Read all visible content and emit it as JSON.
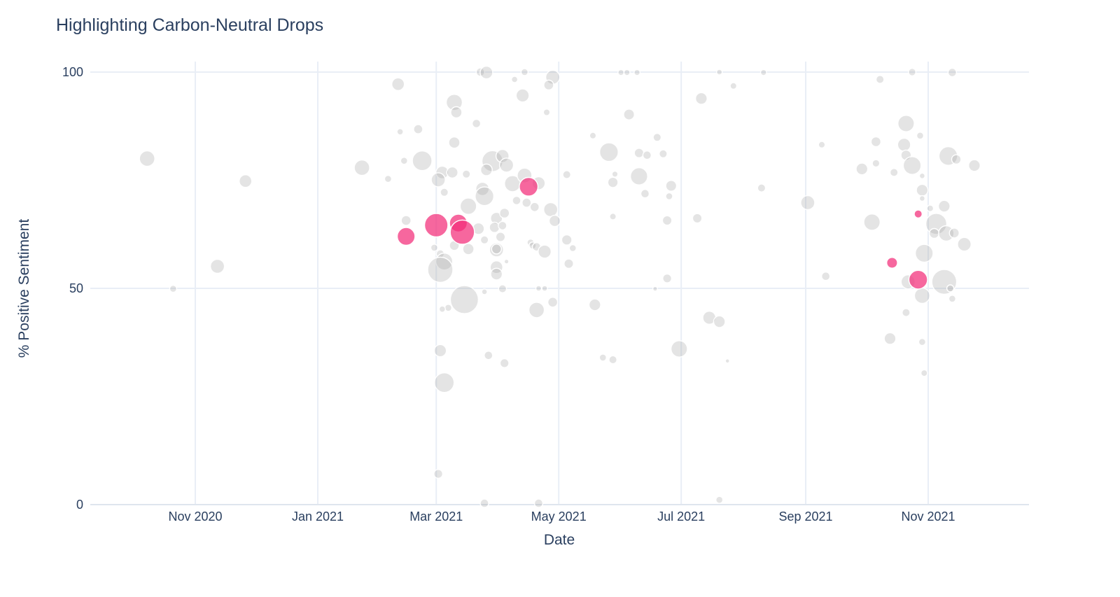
{
  "title": "Highlighting Carbon-Neutral Drops",
  "chart_data": {
    "type": "scatter",
    "title": "Highlighting Carbon-Neutral Drops",
    "xlabel": "Date",
    "ylabel": "% Positive Sentiment",
    "x_ticks": [
      "Nov 2020",
      "Jan 2021",
      "Mar 2021",
      "May 2021",
      "Jul 2021",
      "Sep 2021",
      "Nov 2021"
    ],
    "x_tick_dates": [
      "2020-11-01",
      "2021-01-01",
      "2021-03-01",
      "2021-05-01",
      "2021-07-01",
      "2021-09-01",
      "2021-11-01"
    ],
    "y_ticks": [
      0,
      50,
      100
    ],
    "ylim": [
      0,
      100
    ],
    "x_range": [
      "2020-09-10",
      "2021-12-21"
    ],
    "grid": true,
    "legend_position": "none",
    "points_format": [
      "date",
      "pct_positive_sentiment",
      "bubble_radius_px"
    ],
    "colors": {
      "text": "#2a3f5f",
      "grid": "#e9eef6",
      "axis_line": "#dfe5ee",
      "base_bubble": "rgba(165,165,165,0.30)",
      "highlight_bubble": "rgba(243,45,120,0.72)",
      "bubble_stroke": "#ffffff",
      "background": "#ffffff"
    },
    "series": [
      {
        "key": "base_drops",
        "role": "base",
        "points": [
          [
            "2020-10-08",
            80.0,
            11
          ],
          [
            "2020-11-26",
            74.8,
            9
          ],
          [
            "2020-11-12",
            55.1,
            10
          ],
          [
            "2020-10-21",
            49.9,
            5
          ],
          [
            "2021-02-10",
            97.2,
            9
          ],
          [
            "2021-02-11",
            86.2,
            4.5
          ],
          [
            "2021-02-20",
            86.8,
            6.5
          ],
          [
            "2021-01-23",
            77.9,
            11
          ],
          [
            "2021-02-13",
            79.5,
            5
          ],
          [
            "2021-02-22",
            79.5,
            14
          ],
          [
            "2021-02-05",
            75.3,
            5
          ],
          [
            "2021-02-14",
            65.7,
            7
          ],
          [
            "2021-03-10",
            93.0,
            11.5
          ],
          [
            "2021-03-11",
            90.7,
            8
          ],
          [
            "2021-03-23",
            100,
            6
          ],
          [
            "2021-03-26",
            99.9,
            9
          ],
          [
            "2021-04-09",
            98.3,
            4.5
          ],
          [
            "2021-04-14",
            100,
            5
          ],
          [
            "2021-04-13",
            94.6,
            9.3
          ],
          [
            "2021-04-28",
            98.8,
            10
          ],
          [
            "2021-04-26",
            97.0,
            7
          ],
          [
            "2021-04-25",
            90.7,
            4.7
          ],
          [
            "2021-03-21",
            88.1,
            6
          ],
          [
            "2021-03-10",
            83.7,
            8
          ],
          [
            "2021-03-04",
            76.8,
            9
          ],
          [
            "2021-03-09",
            76.8,
            8
          ],
          [
            "2021-03-02",
            75.1,
            10
          ],
          [
            "2021-03-05",
            72.2,
            5.7
          ],
          [
            "2021-03-16",
            76.4,
            5.7
          ],
          [
            "2021-03-29",
            79.4,
            15
          ],
          [
            "2021-04-03",
            80.6,
            9.3
          ],
          [
            "2021-04-05",
            78.5,
            10
          ],
          [
            "2021-03-26",
            77.4,
            8.3
          ],
          [
            "2021-03-24",
            73.0,
            9.5
          ],
          [
            "2021-03-25",
            71.3,
            13.3
          ],
          [
            "2021-03-17",
            69.0,
            11.7
          ],
          [
            "2021-04-08",
            74.2,
            11.5
          ],
          [
            "2021-04-14",
            76.1,
            10.5
          ],
          [
            "2021-04-21",
            74.3,
            9.3
          ],
          [
            "2021-04-10",
            70.3,
            6
          ],
          [
            "2021-04-15",
            69.8,
            6.5
          ],
          [
            "2021-04-19",
            68.8,
            6.5
          ],
          [
            "2021-04-27",
            68.2,
            10
          ],
          [
            "2021-05-05",
            76.3,
            5.7
          ],
          [
            "2021-04-29",
            65.6,
            8
          ],
          [
            "2021-03-22",
            63.8,
            8.3
          ],
          [
            "2021-03-25",
            61.2,
            5.7
          ],
          [
            "2021-03-10",
            59.9,
            7
          ],
          [
            "2021-03-17",
            59.1,
            8
          ],
          [
            "2021-02-28",
            59.4,
            5
          ],
          [
            "2021-03-03",
            58.0,
            5.7
          ],
          [
            "2021-03-05",
            56.2,
            12
          ],
          [
            "2021-03-03",
            54.3,
            18
          ],
          [
            "2021-03-31",
            66.2,
            8.5
          ],
          [
            "2021-04-04",
            67.4,
            7
          ],
          [
            "2021-03-30",
            64.1,
            7.3
          ],
          [
            "2021-04-03",
            64.5,
            6
          ],
          [
            "2021-04-02",
            61.9,
            6.7
          ],
          [
            "2021-03-31",
            58.9,
            10
          ],
          [
            "2021-03-31",
            59.1,
            7
          ],
          [
            "2021-03-31",
            54.9,
            9
          ],
          [
            "2021-03-31",
            53.3,
            8.3
          ],
          [
            "2021-04-05",
            56.2,
            3.3
          ],
          [
            "2021-03-15",
            47.4,
            20
          ],
          [
            "2021-03-07",
            45.5,
            5
          ],
          [
            "2021-03-04",
            45.2,
            4.5
          ],
          [
            "2021-03-25",
            49.2,
            4
          ],
          [
            "2021-04-03",
            49.9,
            5.7
          ],
          [
            "2021-04-21",
            50.0,
            4
          ],
          [
            "2021-04-24",
            50.0,
            4
          ],
          [
            "2021-04-20",
            45.0,
            11
          ],
          [
            "2021-04-28",
            46.8,
            7
          ],
          [
            "2021-05-05",
            61.2,
            7.3
          ],
          [
            "2021-05-06",
            55.7,
            6.7
          ],
          [
            "2021-05-08",
            59.3,
            5
          ],
          [
            "2021-04-17",
            60.6,
            5
          ],
          [
            "2021-04-18",
            59.9,
            5
          ],
          [
            "2021-04-20",
            59.6,
            6
          ],
          [
            "2021-04-24",
            58.5,
            9.3
          ],
          [
            "2021-05-19",
            46.2,
            8.3
          ],
          [
            "2021-03-03",
            35.6,
            8.7
          ],
          [
            "2021-03-27",
            34.5,
            6
          ],
          [
            "2021-04-04",
            32.7,
            6.3
          ],
          [
            "2021-03-05",
            28.2,
            14
          ],
          [
            "2021-03-02",
            7.1,
            6.3
          ],
          [
            "2021-03-25",
            0.3,
            6
          ],
          [
            "2021-04-21",
            0.3,
            6
          ],
          [
            "2021-06-01",
            99.9,
            4.3
          ],
          [
            "2021-06-04",
            99.9,
            4.3
          ],
          [
            "2021-06-09",
            99.9,
            4.3
          ],
          [
            "2021-07-20",
            100,
            4
          ],
          [
            "2021-08-11",
            99.9,
            4.3
          ],
          [
            "2021-07-27",
            96.8,
            4.7
          ],
          [
            "2021-07-11",
            93.9,
            8.3
          ],
          [
            "2021-06-05",
            90.2,
            7.7
          ],
          [
            "2021-05-18",
            85.3,
            4.7
          ],
          [
            "2021-05-26",
            81.5,
            13.3
          ],
          [
            "2021-06-19",
            84.9,
            5.7
          ],
          [
            "2021-06-10",
            81.3,
            6.7
          ],
          [
            "2021-06-14",
            80.8,
            6
          ],
          [
            "2021-06-22",
            81.1,
            5.7
          ],
          [
            "2021-05-29",
            76.4,
            4.3
          ],
          [
            "2021-05-28",
            74.5,
            7.3
          ],
          [
            "2021-06-10",
            75.9,
            12.3
          ],
          [
            "2021-06-13",
            71.9,
            6
          ],
          [
            "2021-06-26",
            73.7,
            7.7
          ],
          [
            "2021-06-25",
            71.3,
            5
          ],
          [
            "2021-08-10",
            73.2,
            5.7
          ],
          [
            "2021-05-28",
            66.6,
            4.7
          ],
          [
            "2021-06-24",
            65.7,
            6.7
          ],
          [
            "2021-07-09",
            66.2,
            6.7
          ],
          [
            "2021-06-24",
            52.3,
            6.3
          ],
          [
            "2021-06-18",
            49.9,
            3.3
          ],
          [
            "2021-07-15",
            43.2,
            9.3
          ],
          [
            "2021-07-20",
            42.3,
            8.3
          ],
          [
            "2021-06-30",
            36.0,
            11.7
          ],
          [
            "2021-05-23",
            34.0,
            5
          ],
          [
            "2021-05-28",
            33.5,
            5.7
          ],
          [
            "2021-07-24",
            33.2,
            3
          ],
          [
            "2021-07-20",
            1.1,
            5
          ],
          [
            "2021-10-24",
            100,
            5.3
          ],
          [
            "2021-11-13",
            99.9,
            6
          ],
          [
            "2021-10-08",
            98.3,
            5.7
          ],
          [
            "2021-09-09",
            83.2,
            4.7
          ],
          [
            "2021-10-21",
            88.1,
            11.7
          ],
          [
            "2021-10-28",
            85.3,
            5
          ],
          [
            "2021-10-06",
            83.9,
            7
          ],
          [
            "2021-10-20",
            83.2,
            9.3
          ],
          [
            "2021-10-21",
            80.8,
            7.3
          ],
          [
            "2021-10-24",
            78.4,
            12.7
          ],
          [
            "2021-10-29",
            76.0,
            4
          ],
          [
            "2021-11-11",
            80.6,
            13.3
          ],
          [
            "2021-11-15",
            79.8,
            6.7
          ],
          [
            "2021-11-24",
            78.4,
            8.3
          ],
          [
            "2021-09-29",
            77.6,
            8.3
          ],
          [
            "2021-10-06",
            78.9,
            5.3
          ],
          [
            "2021-10-15",
            76.8,
            5.7
          ],
          [
            "2021-10-29",
            72.7,
            8.3
          ],
          [
            "2021-10-29",
            70.8,
            4
          ],
          [
            "2021-09-02",
            69.8,
            10
          ],
          [
            "2021-11-02",
            68.5,
            4.7
          ],
          [
            "2021-11-09",
            69.0,
            8.3
          ],
          [
            "2021-10-04",
            65.3,
            11.7
          ],
          [
            "2021-11-05",
            64.9,
            15
          ],
          [
            "2021-11-04",
            62.7,
            7
          ],
          [
            "2021-11-10",
            62.7,
            11
          ],
          [
            "2021-11-14",
            62.8,
            7
          ],
          [
            "2021-11-19",
            60.2,
            9.7
          ],
          [
            "2021-10-30",
            58.1,
            12.7
          ],
          [
            "2021-09-11",
            52.8,
            6
          ],
          [
            "2021-10-22",
            51.5,
            10
          ],
          [
            "2021-11-09",
            51.5,
            17.7
          ],
          [
            "2021-10-29",
            48.3,
            11
          ],
          [
            "2021-11-12",
            50.0,
            5
          ],
          [
            "2021-11-13",
            47.6,
            5
          ],
          [
            "2021-10-21",
            44.4,
            5.7
          ],
          [
            "2021-10-13",
            38.4,
            8.3
          ],
          [
            "2021-10-29",
            37.6,
            5
          ],
          [
            "2021-10-30",
            30.4,
            4.7
          ]
        ]
      },
      {
        "key": "carbon_neutral_drops",
        "role": "highlight",
        "points": [
          [
            "2021-02-14",
            62.0,
            12.7
          ],
          [
            "2021-03-01",
            64.6,
            16.7
          ],
          [
            "2021-03-12",
            65.1,
            12.7
          ],
          [
            "2021-03-14",
            63.0,
            17.3
          ],
          [
            "2021-04-16",
            73.5,
            13.3
          ],
          [
            "2021-10-27",
            67.2,
            5.7
          ],
          [
            "2021-10-14",
            55.9,
            7.7
          ],
          [
            "2021-10-27",
            52.0,
            13.3
          ]
        ]
      }
    ]
  }
}
